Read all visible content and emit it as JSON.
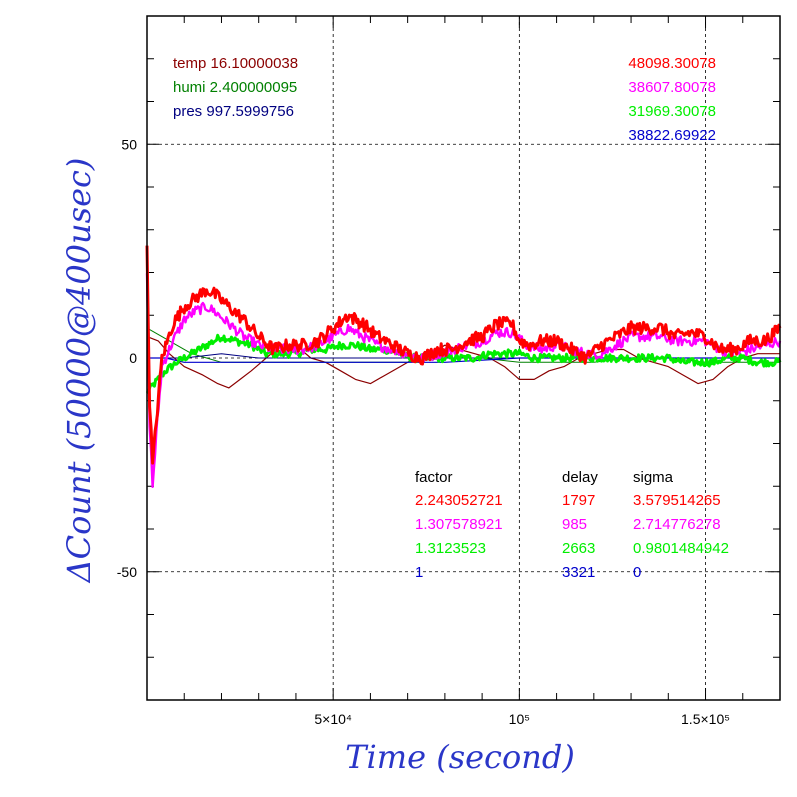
{
  "chart_data": {
    "type": "line",
    "xlabel": "Time (second)",
    "ylabel": "ΔCount (50000@400usec)",
    "xlim": [
      0,
      170000
    ],
    "ylim": [
      -80,
      80
    ],
    "x_ticks": [
      {
        "value": 50000,
        "label": "5×10⁴"
      },
      {
        "value": 100000,
        "label": "10⁵"
      },
      {
        "value": 150000,
        "label": "1.5×10⁵"
      }
    ],
    "y_ticks": [
      {
        "value": 50,
        "label": "50"
      },
      {
        "value": 0,
        "label": "0"
      },
      {
        "value": -50,
        "label": "-50"
      }
    ],
    "grid": "dashed at major ticks",
    "colors": {
      "temp": "#8b0000",
      "humi": "#008000",
      "pres": "#000080",
      "s1": "#ff0000",
      "s2": "#ff00ff",
      "s3": "#00ee00",
      "s4": "#0000cc",
      "axis_label": "#2a36c8"
    },
    "env_labels": [
      {
        "key": "temp",
        "text": "temp 16.10000038"
      },
      {
        "key": "humi",
        "text": "humi 2.400000095"
      },
      {
        "key": "pres",
        "text": "pres 997.5999756"
      }
    ],
    "right_labels": [
      {
        "key": "s1",
        "text": "48098.30078"
      },
      {
        "key": "s2",
        "text": "38607.80078"
      },
      {
        "key": "s3",
        "text": "31969.30078"
      },
      {
        "key": "s4",
        "text": "38822.69922"
      }
    ],
    "table": {
      "headers": [
        "factor",
        "delay",
        "sigma"
      ],
      "rows": [
        {
          "key": "s1",
          "factor": "2.243052721",
          "delay": "1797",
          "sigma": "3.579514265"
        },
        {
          "key": "s2",
          "factor": "1.307578921",
          "delay": "985",
          "sigma": "2.714776278"
        },
        {
          "key": "s3",
          "factor": "1.3123523",
          "delay": "2663",
          "sigma": "0.9801484942"
        },
        {
          "key": "s4",
          "factor": "1",
          "delay": "3321",
          "sigma": "0"
        }
      ]
    },
    "series": [
      {
        "key": "s1",
        "noise": 1.5,
        "width": 3,
        "x": [
          0,
          700,
          1500,
          2500,
          4000,
          7000,
          10000,
          13000,
          16000,
          18000,
          22000,
          26000,
          30000,
          34000,
          38000,
          42000,
          46000,
          50000,
          54000,
          58000,
          62000,
          66000,
          70000,
          74000,
          78000,
          82000,
          86000,
          90000,
          94000,
          98000,
          100000,
          103000,
          106000,
          110000,
          114000,
          118000,
          122000,
          126000,
          130000,
          134000,
          138000,
          142000,
          146000,
          150000,
          154000,
          158000,
          162000,
          166000,
          170000
        ],
        "y": [
          25,
          -10,
          -25,
          -15,
          0,
          8,
          12,
          14,
          16,
          15,
          12,
          9,
          5,
          2,
          3,
          3,
          4,
          7,
          10,
          8,
          5,
          3,
          1,
          0,
          2,
          2,
          4,
          5,
          8,
          8,
          4,
          3,
          4,
          4,
          2,
          0,
          3,
          5,
          7,
          7,
          7,
          5,
          6,
          5,
          2,
          2,
          4,
          4,
          7
        ]
      },
      {
        "key": "s2",
        "noise": 1.2,
        "width": 2.4,
        "x": [
          0,
          700,
          1500,
          2500,
          4000,
          7000,
          10000,
          13000,
          16000,
          18000,
          22000,
          26000,
          30000,
          34000,
          38000,
          42000,
          46000,
          50000,
          54000,
          58000,
          62000,
          66000,
          70000,
          74000,
          78000,
          82000,
          86000,
          90000,
          94000,
          98000,
          102000,
          106000,
          110000,
          114000,
          118000,
          122000,
          126000,
          130000,
          134000,
          138000,
          142000,
          146000,
          150000,
          154000,
          158000,
          162000,
          166000,
          170000
        ],
        "y": [
          20,
          -15,
          -30,
          -18,
          -2,
          4,
          9,
          11,
          12,
          11,
          8,
          5,
          3,
          2,
          2,
          2,
          3,
          5,
          7,
          5,
          3,
          2,
          1,
          0,
          1,
          2,
          3,
          4,
          6,
          6,
          3,
          2,
          3,
          2,
          1,
          1,
          3,
          5,
          5,
          5,
          4,
          4,
          4,
          2,
          1,
          2,
          3,
          4
        ]
      },
      {
        "key": "s3",
        "noise": 0.9,
        "width": 3,
        "x": [
          0,
          2000,
          5000,
          8000,
          12000,
          16000,
          20000,
          24000,
          28000,
          32000,
          36000,
          40000,
          44000,
          48000,
          52000,
          56000,
          60000,
          64000,
          68000,
          72000,
          76000,
          80000,
          84000,
          88000,
          92000,
          96000,
          100000,
          104000,
          108000,
          112000,
          116000,
          120000,
          124000,
          128000,
          132000,
          136000,
          140000,
          144000,
          148000,
          152000,
          156000,
          160000,
          164000,
          168000,
          170000
        ],
        "y": [
          -8,
          -6,
          -3,
          -1,
          1,
          3,
          5,
          4,
          3,
          1,
          1,
          1,
          2,
          2,
          3,
          3,
          2,
          2,
          1,
          0,
          0,
          0,
          0,
          0,
          1,
          1,
          1,
          0,
          0,
          0,
          0,
          0,
          0,
          0,
          0,
          0,
          0,
          -1,
          -1,
          -1,
          0,
          0,
          -1,
          -1,
          -1
        ]
      },
      {
        "key": "s4",
        "noise": 0,
        "width": 1.2,
        "x": [
          0,
          5000,
          10000,
          20000,
          40000,
          60000,
          80000,
          100000,
          120000,
          140000,
          160000,
          170000
        ],
        "y": [
          0,
          0,
          -1,
          -1,
          -1,
          -1,
          -1,
          0,
          0,
          0,
          0,
          0
        ]
      },
      {
        "key": "temp",
        "noise": 0,
        "width": 1.2,
        "x": [
          0,
          3000,
          6000,
          10000,
          15000,
          19000,
          22000,
          25000,
          28000,
          32000,
          36000,
          40000,
          44000,
          48000,
          52000,
          56000,
          60000,
          64000,
          68000,
          72000,
          76000,
          80000,
          84000,
          88000,
          92000,
          96000,
          100000,
          104000,
          108000,
          112000,
          116000,
          120000,
          124000,
          128000,
          132000,
          136000,
          140000,
          144000,
          148000,
          152000,
          156000,
          160000,
          164000,
          168000,
          170000
        ],
        "y": [
          5,
          4,
          1,
          -2,
          -4,
          -6,
          -7,
          -5,
          -3,
          0,
          3,
          3,
          0,
          -1,
          -3,
          -5,
          -6,
          -4,
          -2,
          0,
          1,
          3,
          2,
          1,
          0,
          -2,
          -5,
          -5,
          -3,
          -2,
          0,
          1,
          2,
          2,
          0,
          -1,
          -2,
          -4,
          -6,
          -5,
          -2,
          0,
          1,
          1,
          1
        ]
      },
      {
        "key": "humi",
        "noise": 0,
        "width": 1,
        "x": [
          0,
          4000,
          8000,
          12000,
          16000,
          20000,
          30000,
          40000,
          50000,
          60000,
          70000,
          80000,
          90000,
          100000,
          110000,
          120000,
          130000,
          140000,
          150000,
          160000,
          170000
        ],
        "y": [
          7,
          5,
          3,
          1,
          0,
          -1,
          -1,
          -1,
          -1,
          -1,
          -1,
          0,
          0,
          -1,
          -1,
          -1,
          0,
          0,
          -1,
          -1,
          -1
        ]
      },
      {
        "key": "pres",
        "noise": 0,
        "width": 1,
        "x": [
          0,
          10000,
          20000,
          30000,
          40000,
          50000,
          60000,
          70000,
          80000,
          90000,
          100000,
          110000,
          120000,
          130000,
          140000,
          150000,
          160000,
          170000
        ],
        "y": [
          0,
          0,
          1,
          0,
          0,
          0,
          0,
          0,
          0,
          0,
          0,
          0,
          0,
          0,
          0,
          0,
          0,
          0
        ]
      }
    ]
  }
}
